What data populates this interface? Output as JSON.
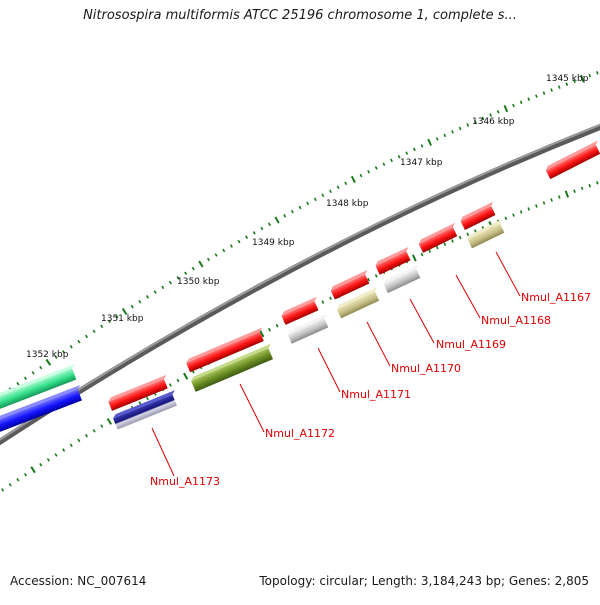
{
  "title": "Nitrosospira multiformis ATCC 25196 chromosome 1, complete s...",
  "footer": {
    "accession": "Accession: NC_007614",
    "topology": "Topology: circular; Length: 3,184,243 bp; Genes: 2,805"
  },
  "ticks": [
    "1345 kbp",
    "1346 kbp",
    "1347 kbp",
    "1348 kbp",
    "1349 kbp",
    "1350 kbp",
    "1351 kbp",
    "1352 kbp"
  ],
  "genes": [
    {
      "id": "g1",
      "label": "",
      "strand": "fwd",
      "color": "#ff1a1a"
    },
    {
      "id": "g2",
      "label": "Nmul_A1167",
      "strand": "fwd",
      "color": "#ff1a1a"
    },
    {
      "id": "g3",
      "label": "Nmul_A1168",
      "strand": "fwd",
      "color": "#ff1a1a"
    },
    {
      "id": "g4",
      "label": "Nmul_A1169",
      "strand": "fwd",
      "color": "#ff1a1a"
    },
    {
      "id": "g5",
      "label": "Nmul_A1170",
      "strand": "fwd",
      "color": "#ff1a1a"
    },
    {
      "id": "g6",
      "label": "Nmul_A1171",
      "strand": "fwd",
      "color": "#ff1a1a"
    },
    {
      "id": "g7",
      "label": "Nmul_A1172",
      "strand": "fwd",
      "color": "#ff1a1a"
    },
    {
      "id": "g8",
      "label": "Nmul_A1173",
      "strand": "fwd",
      "color": "#ff1a1a"
    },
    {
      "id": "f1",
      "label": "",
      "strand": "feature",
      "color": "#c8c088"
    },
    {
      "id": "f2",
      "label": "",
      "strand": "feature",
      "color": "#c0c0c0"
    },
    {
      "id": "f3",
      "label": "",
      "strand": "feature",
      "color": "#c8c088"
    },
    {
      "id": "f4",
      "label": "",
      "strand": "feature",
      "color": "#c0c0c0"
    },
    {
      "id": "f5",
      "label": "",
      "strand": "feature",
      "color": "#6b8e23"
    },
    {
      "id": "f6",
      "label": "",
      "strand": "feature",
      "color": "#1a1a80"
    },
    {
      "id": "o1",
      "label": "",
      "strand": "other",
      "color": "#40e090"
    },
    {
      "id": "o2",
      "label": "",
      "strand": "other",
      "color": "#1a1aff"
    }
  ],
  "colors": {
    "backbone": "#8a8a8a",
    "tick": "#1a7a1a",
    "gene_label": "#e00000",
    "leader": "#e00000"
  }
}
